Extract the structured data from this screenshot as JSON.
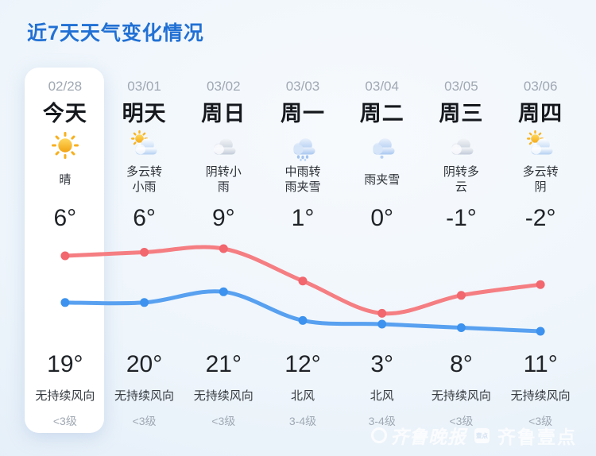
{
  "title": "近7天天气变化情况",
  "days": [
    {
      "date": "02/28",
      "label": "今天",
      "icon": "sunny",
      "desc": "晴",
      "temp_top": "6°",
      "temp_bottom": "19°",
      "wind": "无持续风向",
      "wind_level": "<3级",
      "today": true
    },
    {
      "date": "03/01",
      "label": "明天",
      "icon": "partly-cloudy",
      "desc": "多云转小雨",
      "temp_top": "6°",
      "temp_bottom": "20°",
      "wind": "无持续风向",
      "wind_level": "<3级",
      "today": false
    },
    {
      "date": "03/02",
      "label": "周日",
      "icon": "overcast",
      "desc": "阴转小雨",
      "temp_top": "9°",
      "temp_bottom": "21°",
      "wind": "无持续风向",
      "wind_level": "<3级",
      "today": false
    },
    {
      "date": "03/03",
      "label": "周一",
      "icon": "rain",
      "desc": "中雨转雨夹雪",
      "temp_top": "1°",
      "temp_bottom": "12°",
      "wind": "北风",
      "wind_level": "3-4级",
      "today": false
    },
    {
      "date": "03/04",
      "label": "周二",
      "icon": "sleet",
      "desc": "雨夹雪",
      "temp_top": "0°",
      "temp_bottom": "3°",
      "wind": "北风",
      "wind_level": "3-4级",
      "today": false
    },
    {
      "date": "03/05",
      "label": "周三",
      "icon": "overcast",
      "desc": "阴转多云",
      "temp_top": "-1°",
      "temp_bottom": "8°",
      "wind": "无持续风向",
      "wind_level": "<3级",
      "today": false
    },
    {
      "date": "03/06",
      "label": "周四",
      "icon": "partly-cloudy",
      "desc": "多云转阴",
      "temp_top": "-2°",
      "temp_bottom": "11°",
      "wind": "无持续风向",
      "wind_level": "<3级",
      "today": false
    }
  ],
  "chart_data": {
    "type": "line",
    "x": [
      "02/28",
      "03/01",
      "03/02",
      "03/03",
      "03/04",
      "03/05",
      "03/06"
    ],
    "series": [
      {
        "name": "high",
        "values": [
          19,
          20,
          21,
          12,
          3,
          8,
          11
        ],
        "color": "#f57e82",
        "dot_color": "#f2666d"
      },
      {
        "name": "low",
        "values": [
          6,
          6,
          9,
          1,
          0,
          -1,
          -2
        ],
        "color": "#58a0f0",
        "dot_color": "#3c92ee"
      }
    ],
    "title": "",
    "xlabel": "",
    "ylabel": "",
    "ylim": [
      -2,
      21
    ],
    "grid": false,
    "legend": false
  },
  "watermark": {
    "brand_left": "齐鲁晚报",
    "badge": "壹点",
    "brand_right": "齐鲁壹点"
  },
  "colors": {
    "accent_blue": "#2170d4",
    "line_high": "#f57e82",
    "line_low": "#58a0f0",
    "card_bg": "#ffffff",
    "text_dark": "#1f2327",
    "text_gray": "#a0a8b3"
  }
}
